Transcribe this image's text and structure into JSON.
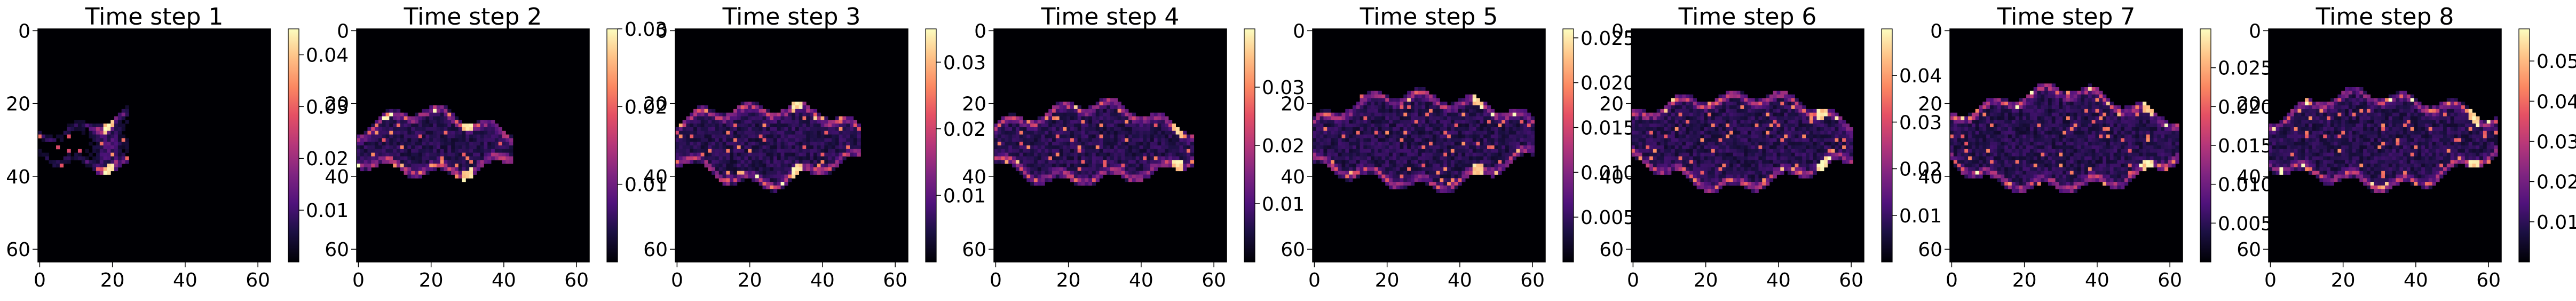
{
  "chart_data": {
    "type": "heatmap",
    "colormap": "magma",
    "grid": false,
    "background_value_color": "#000004",
    "panels": [
      {
        "title": "Time step 1",
        "xlim": [
          0,
          64
        ],
        "ylim": [
          64,
          0
        ],
        "xticks": [
          0,
          20,
          40,
          60
        ],
        "yticks": [
          0,
          20,
          40,
          60
        ],
        "vmax": 0.045,
        "cbar_ticks": [
          0.01,
          0.02,
          0.03,
          0.04
        ],
        "cbar_tick_labels": [
          "0.01",
          "0.02",
          "0.03",
          "0.04"
        ],
        "plume": {
          "x_start": 0,
          "x_end": 24,
          "y_center": 31,
          "half_width": 7,
          "structure": "crescent",
          "peak_x": 19,
          "peak_value": 0.044
        }
      },
      {
        "title": "Time step 2",
        "xlim": [
          0,
          64
        ],
        "ylim": [
          64,
          0
        ],
        "xticks": [
          0,
          20,
          40,
          60
        ],
        "yticks": [
          0,
          20,
          40,
          60
        ],
        "vmax": 0.03,
        "cbar_ticks": [
          0.01,
          0.02,
          0.03
        ],
        "cbar_tick_labels": [
          "0.01",
          "0.02",
          "0.03"
        ],
        "plume": {
          "x_start": 0,
          "x_end": 42,
          "y_center": 31,
          "half_width": 8,
          "structure": "outline",
          "peak_x": 30,
          "peak_value": 0.029
        }
      },
      {
        "title": "Time step 3",
        "xlim": [
          0,
          64
        ],
        "ylim": [
          64,
          0
        ],
        "xticks": [
          0,
          20,
          40,
          60
        ],
        "yticks": [
          0,
          20,
          40,
          60
        ],
        "vmax": 0.035,
        "cbar_ticks": [
          0.01,
          0.02,
          0.03
        ],
        "cbar_tick_labels": [
          "0.01",
          "0.02",
          "0.03"
        ],
        "plume": {
          "x_start": 0,
          "x_end": 50,
          "y_center": 31,
          "half_width": 10,
          "structure": "outline",
          "peak_x": 33,
          "peak_value": 0.034
        }
      },
      {
        "title": "Time step 4",
        "xlim": [
          0,
          64
        ],
        "ylim": [
          64,
          0
        ],
        "xticks": [
          0,
          20,
          40,
          60
        ],
        "yticks": [
          0,
          20,
          40,
          60
        ],
        "vmax": 0.04,
        "cbar_ticks": [
          0.01,
          0.02,
          0.03
        ],
        "cbar_tick_labels": [
          "0.01",
          "0.02",
          "0.03"
        ],
        "plume": {
          "x_start": 0,
          "x_end": 54,
          "y_center": 31,
          "half_width": 10,
          "structure": "outline",
          "peak_x": 50,
          "peak_value": 0.038
        }
      },
      {
        "title": "Time step 5",
        "xlim": [
          0,
          64
        ],
        "ylim": [
          64,
          0
        ],
        "xticks": [
          0,
          20,
          40,
          60
        ],
        "yticks": [
          0,
          20,
          40,
          60
        ],
        "vmax": 0.026,
        "cbar_ticks": [
          0.005,
          0.01,
          0.015,
          0.02,
          0.025
        ],
        "cbar_tick_labels": [
          "0.005",
          "0.010",
          "0.015",
          "0.020",
          "0.025"
        ],
        "plume": {
          "x_start": 0,
          "x_end": 60,
          "y_center": 30,
          "half_width": 12,
          "structure": "outline",
          "peak_x": 45,
          "peak_value": 0.025
        }
      },
      {
        "title": "Time step 6",
        "xlim": [
          0,
          64
        ],
        "ylim": [
          64,
          0
        ],
        "xticks": [
          0,
          20,
          40,
          60
        ],
        "yticks": [
          0,
          20,
          40,
          60
        ],
        "vmax": 0.05,
        "cbar_ticks": [
          0.01,
          0.02,
          0.03,
          0.04
        ],
        "cbar_tick_labels": [
          "0.01",
          "0.02",
          "0.03",
          "0.04"
        ],
        "plume": {
          "x_start": 0,
          "x_end": 60,
          "y_center": 30,
          "half_width": 12,
          "structure": "outline",
          "peak_x": 52,
          "peak_value": 0.048
        }
      },
      {
        "title": "Time step 7",
        "xlim": [
          0,
          64
        ],
        "ylim": [
          64,
          0
        ],
        "xticks": [
          0,
          20,
          40,
          60
        ],
        "yticks": [
          0,
          20,
          40,
          60
        ],
        "vmax": 0.03,
        "cbar_ticks": [
          0.005,
          0.01,
          0.015,
          0.02,
          0.025
        ],
        "cbar_tick_labels": [
          "0.005",
          "0.010",
          "0.015",
          "0.020",
          "0.025"
        ],
        "plume": {
          "x_start": 0,
          "x_end": 62,
          "y_center": 30,
          "half_width": 13,
          "structure": "outline",
          "peak_x": 54,
          "peak_value": 0.029
        }
      },
      {
        "title": "Time step 8",
        "xlim": [
          0,
          64
        ],
        "ylim": [
          64,
          0
        ],
        "xticks": [
          0,
          20,
          40,
          60
        ],
        "yticks": [
          0,
          20,
          40,
          60
        ],
        "vmax": 0.058,
        "cbar_ticks": [
          0.01,
          0.02,
          0.03,
          0.04,
          0.05
        ],
        "cbar_tick_labels": [
          "0.01",
          "0.02",
          "0.03",
          "0.04",
          "0.05"
        ],
        "plume": {
          "x_start": 0,
          "x_end": 62,
          "y_center": 30,
          "half_width": 12,
          "structure": "outline",
          "peak_x": 56,
          "peak_value": 0.056
        }
      }
    ]
  }
}
